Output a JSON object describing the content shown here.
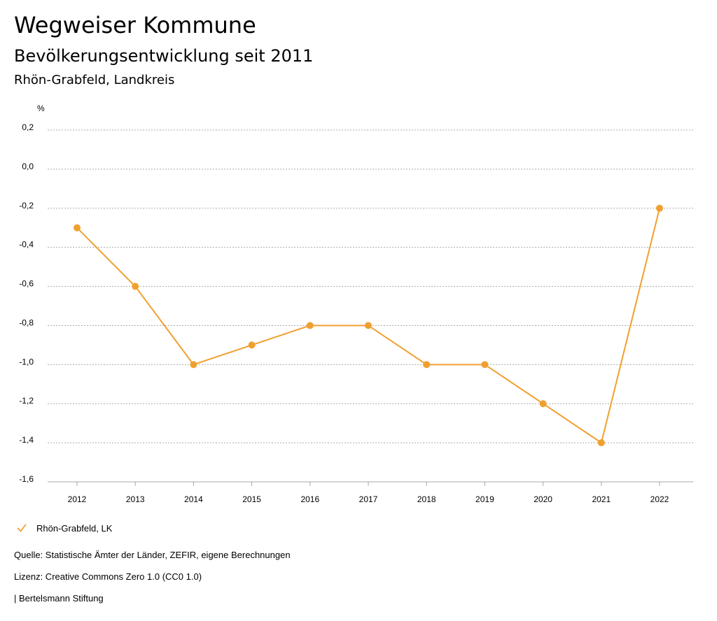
{
  "header": {
    "title": "Wegweiser Kommune",
    "subtitle": "Bevölkerungsentwicklung seit 2011",
    "region": "Rhön-Grabfeld, Landkreis"
  },
  "colors": {
    "series": "#f0a030",
    "grid": "#aaaaaa",
    "text": "#000000"
  },
  "legend": {
    "icon": "checkmark-icon",
    "label": "Rhön-Grabfeld, LK"
  },
  "footer": {
    "source": "Quelle: Statistische Ämter der Länder, ZEFIR, eigene Berechnungen",
    "license": "Lizenz: Creative Commons Zero 1.0 (CC0 1.0)",
    "publisher": "| Bertelsmann Stiftung"
  },
  "chart_data": {
    "type": "line",
    "unit_label": "%",
    "categories": [
      "2012",
      "2013",
      "2014",
      "2015",
      "2016",
      "2017",
      "2018",
      "2019",
      "2020",
      "2021",
      "2022"
    ],
    "series": [
      {
        "name": "Rhön-Grabfeld, LK",
        "values": [
          -0.3,
          -0.6,
          -1.0,
          -0.9,
          -0.8,
          -0.8,
          -1.0,
          -1.0,
          -1.2,
          -1.4,
          -0.2
        ]
      }
    ],
    "y_ticks": [
      0.2,
      0.0,
      -0.2,
      -0.4,
      -0.6,
      -0.8,
      -1.0,
      -1.2,
      -1.4,
      -1.6
    ],
    "y_tick_labels": [
      "0,2",
      "0,0",
      "-0,2",
      "-0,4",
      "-0,6",
      "-0,8",
      "-1,0",
      "-1,2",
      "-1,4",
      "-1,6"
    ],
    "ylim": [
      -1.6,
      0.2
    ],
    "grid": true,
    "legend_position": "bottom-left"
  }
}
